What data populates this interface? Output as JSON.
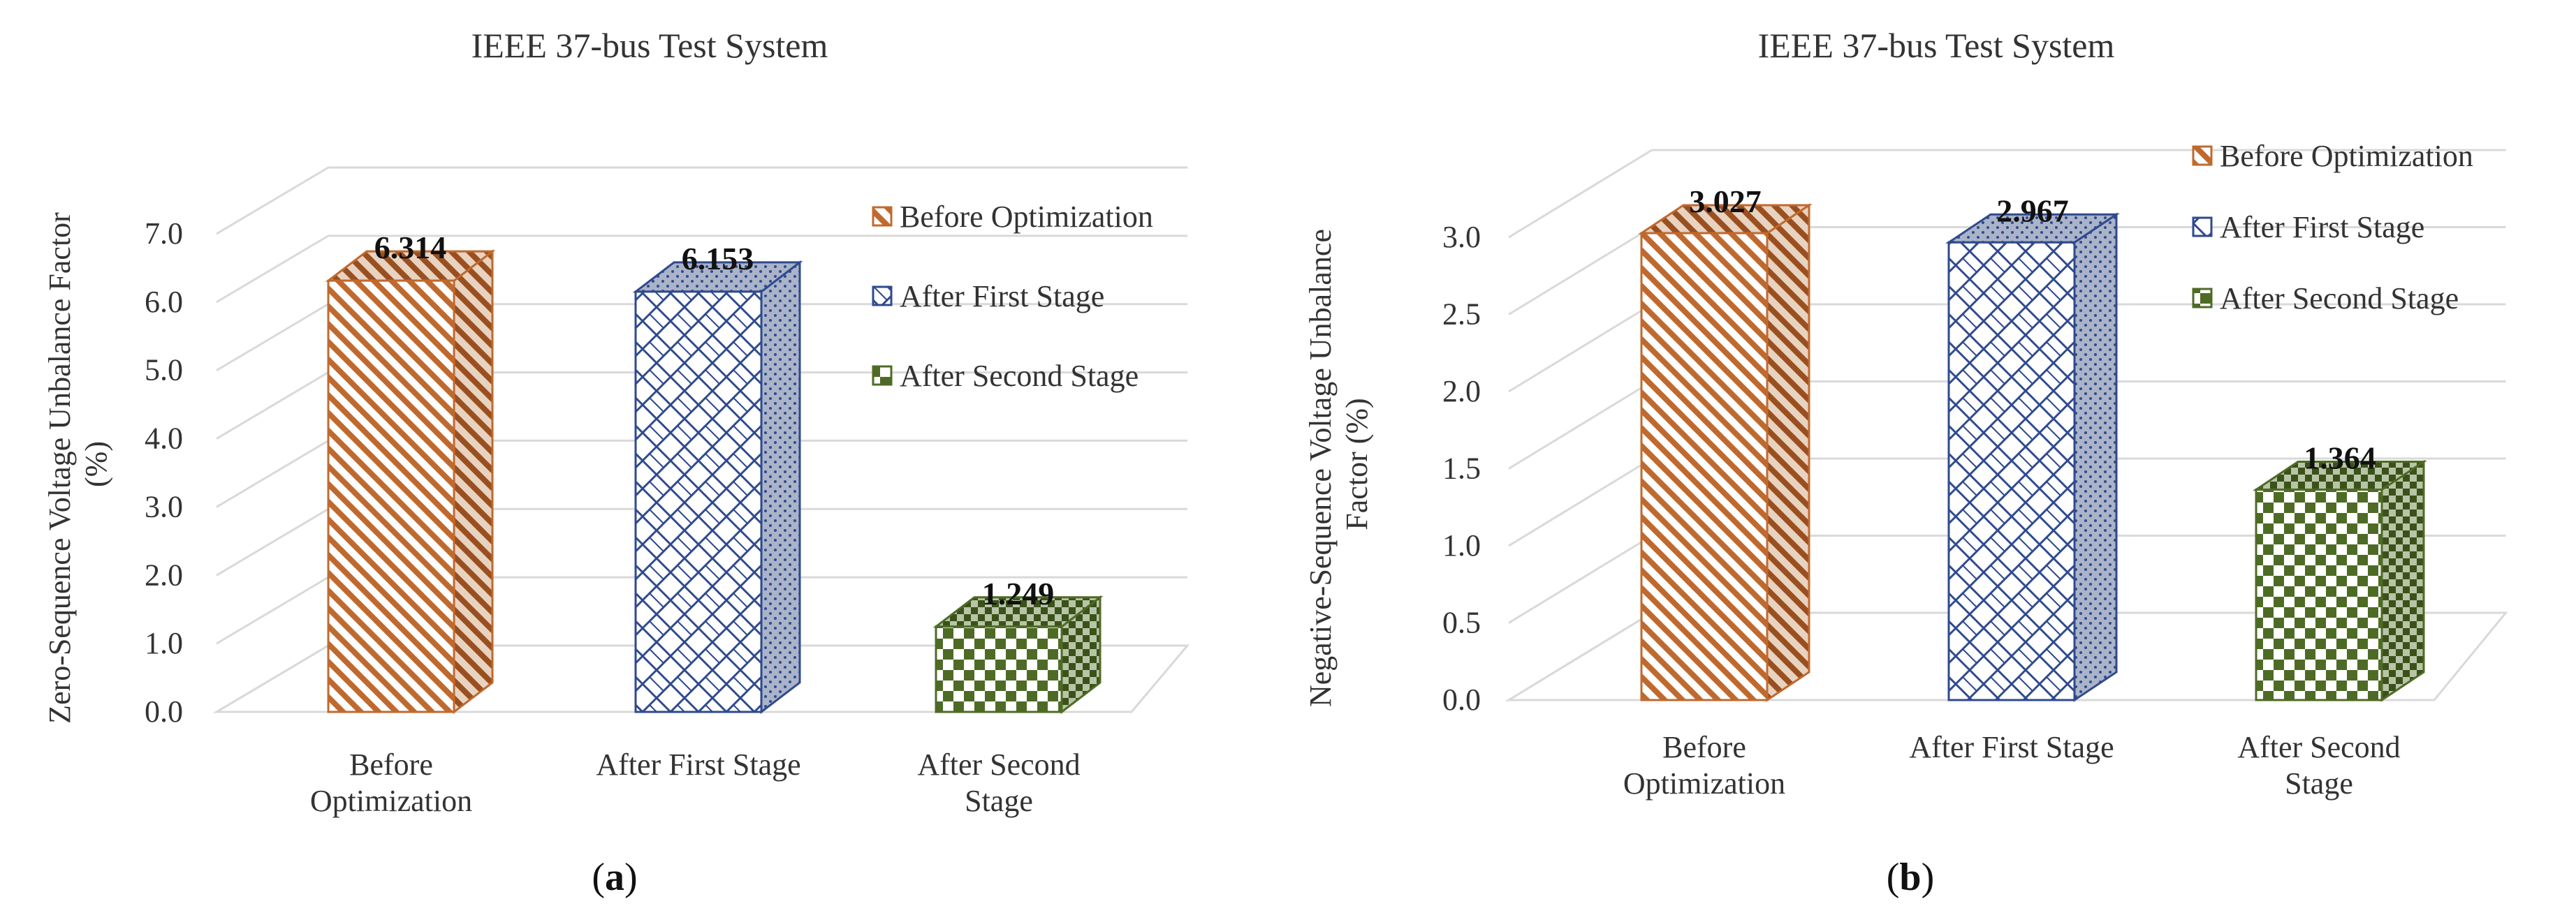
{
  "chart_data": [
    {
      "panel": "a",
      "type": "bar",
      "title": "IEEE  37-bus Test System",
      "ylabel": "Zero-Sequence Voltage Unbalance Factor (%)",
      "ylabel_lines": [
        "Zero-Sequence Voltage Unbalance Factor",
        "(%)"
      ],
      "xlabel": "",
      "ylim": [
        0,
        7
      ],
      "yticks": [
        "0.0",
        "1.0",
        "2.0",
        "3.0",
        "4.0",
        "5.0",
        "6.0",
        "7.0"
      ],
      "categories": [
        "Before Optimization",
        "After First Stage",
        "After Second Stage"
      ],
      "category_lines": [
        [
          "Before",
          "Optimization"
        ],
        [
          "After First Stage"
        ],
        [
          "After Second",
          "Stage"
        ]
      ],
      "values": [
        6.314,
        6.153,
        1.249
      ],
      "labels": [
        "6.314",
        "6.153",
        "1.249"
      ],
      "legend": [
        "Before Optimization",
        "After First Stage",
        "After Second Stage"
      ],
      "legend_position": "right",
      "grid": true,
      "style": "3d-column"
    },
    {
      "panel": "b",
      "type": "bar",
      "title": "IEEE  37-bus Test System",
      "ylabel": "Negative-Sequence Voltage Unbalance Factor (%)",
      "ylabel_lines": [
        "Negative-Sequence Voltage Unbalance",
        "Factor (%)"
      ],
      "xlabel": "",
      "ylim": [
        0,
        3
      ],
      "yticks": [
        "0.0",
        "0.5",
        "1.0",
        "1.5",
        "2.0",
        "2.5",
        "3.0"
      ],
      "categories": [
        "Before Optimization",
        "After First Stage",
        "After Second Stage"
      ],
      "category_lines": [
        [
          "Before",
          "Optimization"
        ],
        [
          "After First Stage"
        ],
        [
          "After Second",
          "Stage"
        ]
      ],
      "values": [
        3.027,
        2.967,
        1.364
      ],
      "labels": [
        "3.027",
        "2.967",
        "1.364"
      ],
      "legend": [
        "Before Optimization",
        "After First Stage",
        "After Second Stage"
      ],
      "legend_position": "top-right",
      "grid": true,
      "style": "3d-column"
    }
  ],
  "panels": [
    "(a)",
    "(b)"
  ],
  "series_colors": [
    "#c0692e",
    "#2f4a8e",
    "#4e6b26"
  ]
}
